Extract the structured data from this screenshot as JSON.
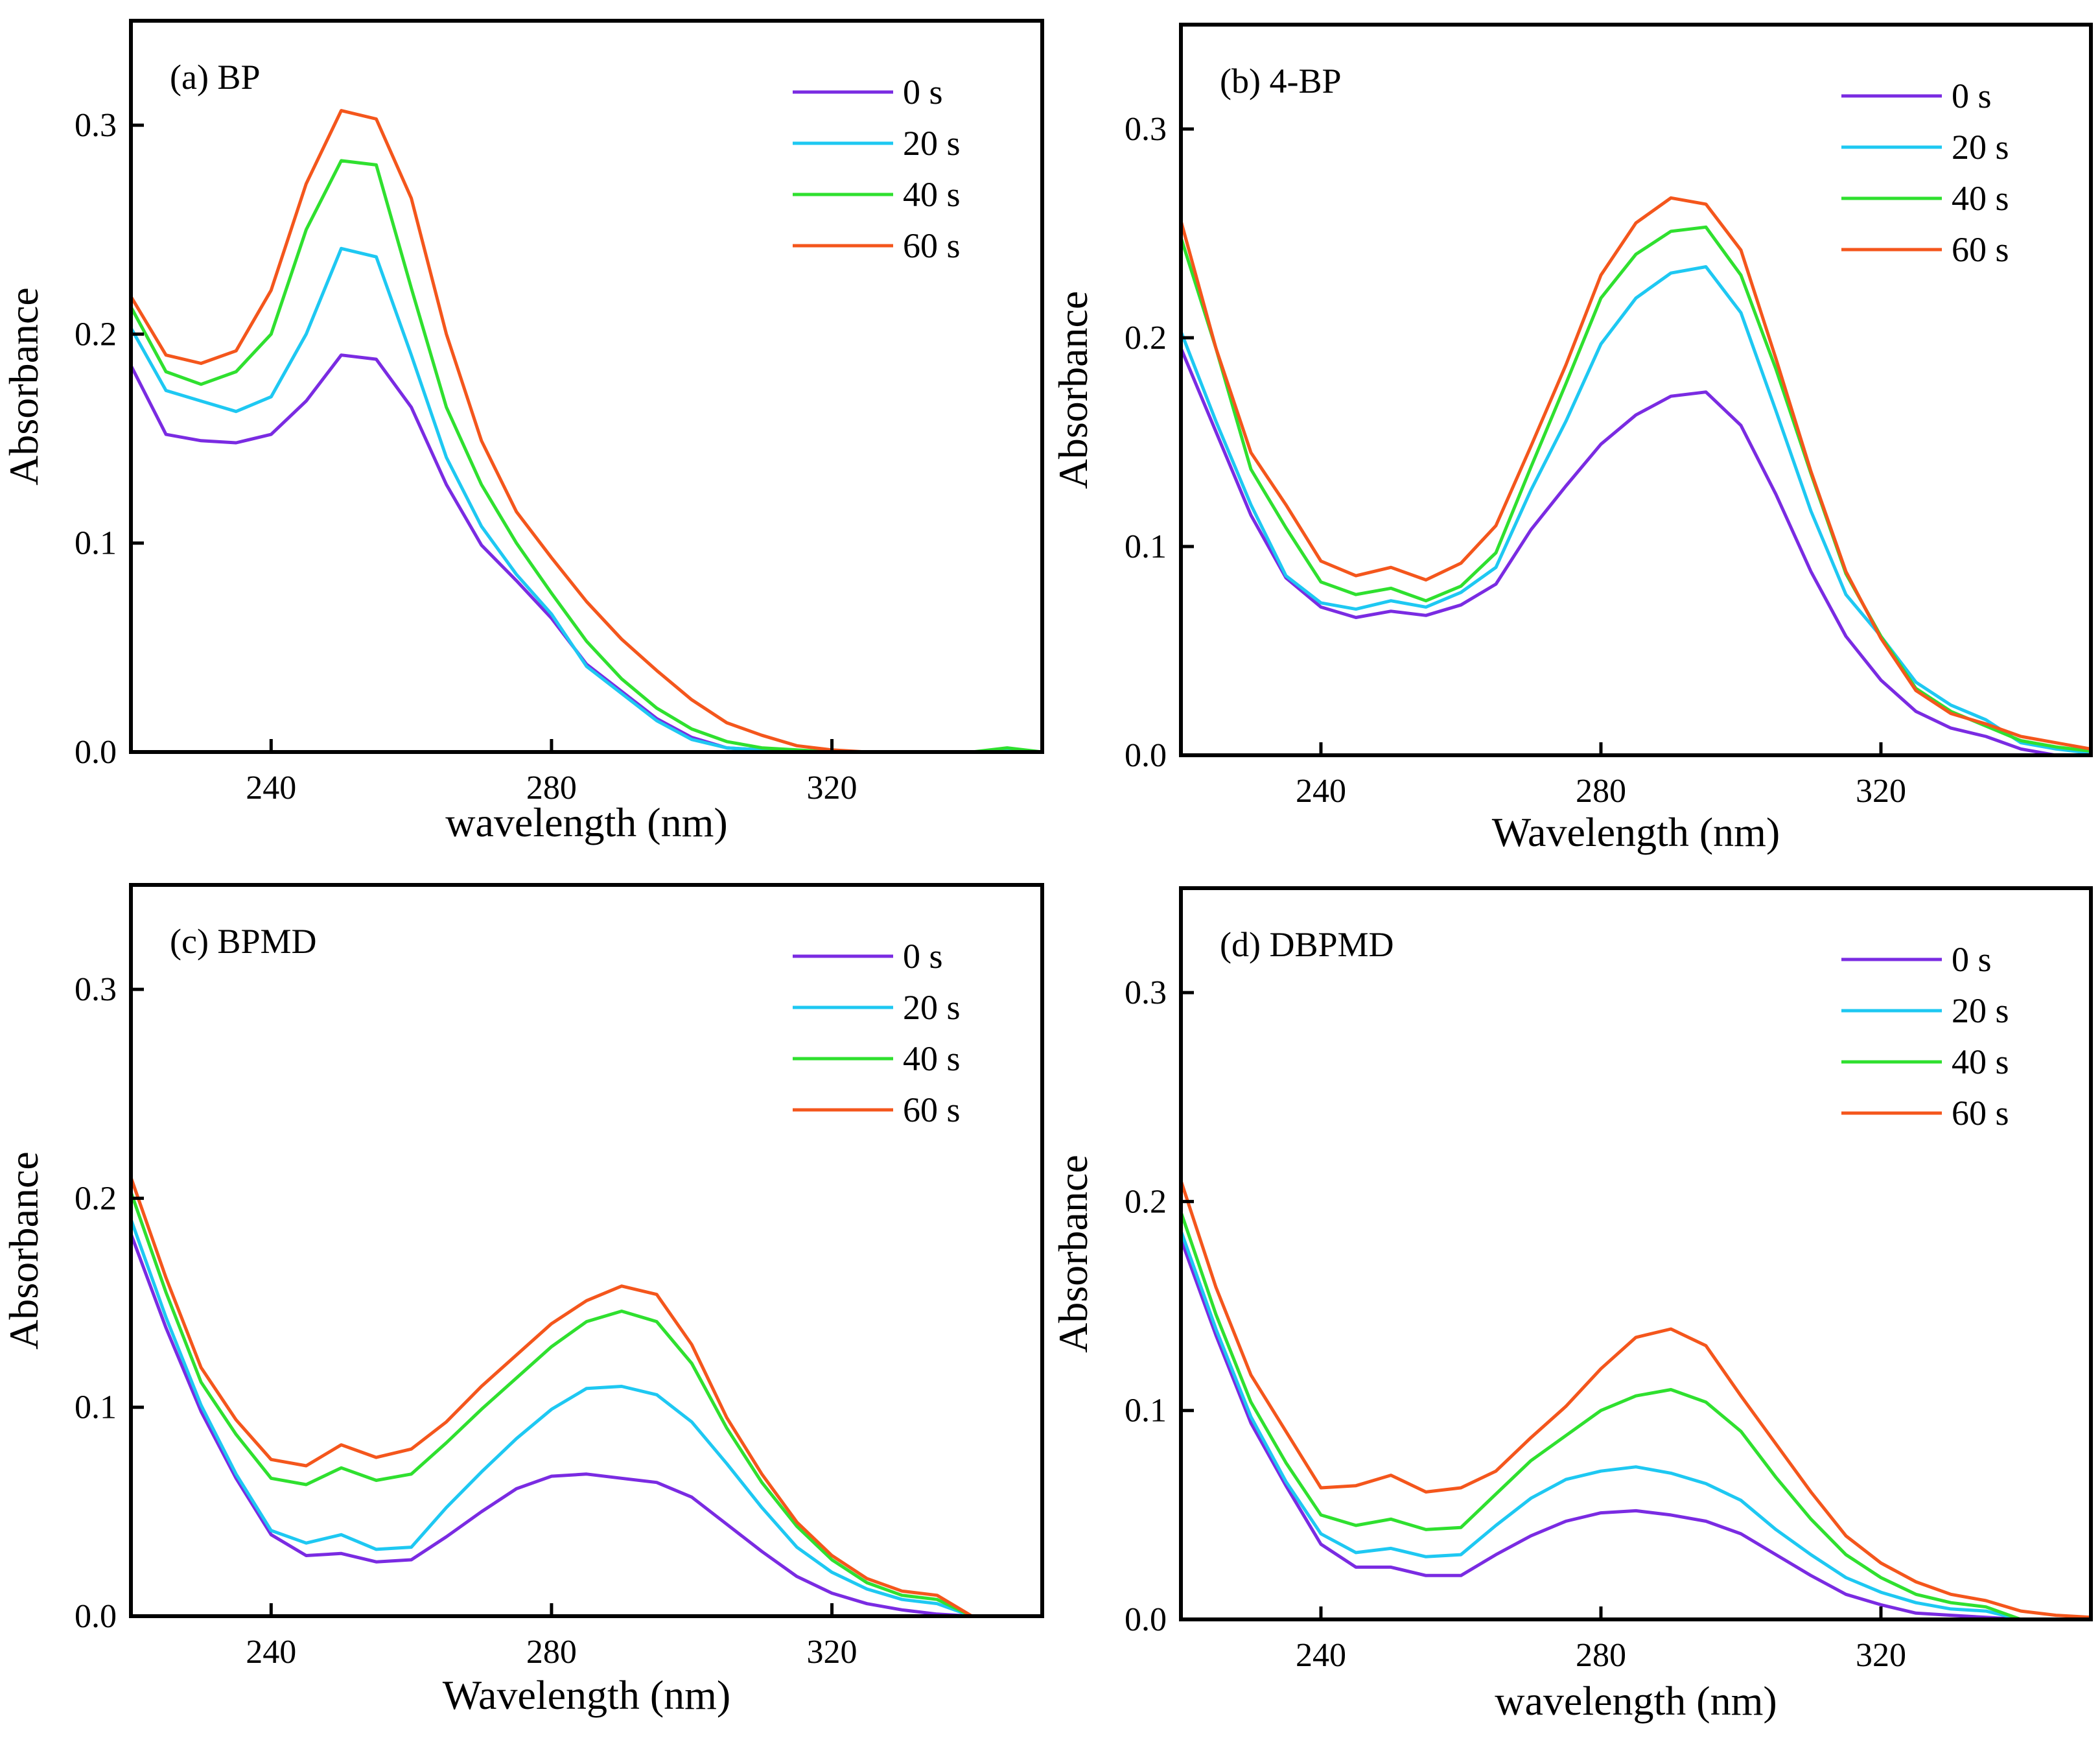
{
  "chart_data": [
    {
      "type": "line",
      "title": "(a) BP",
      "xlabel": "wavelength (nm)",
      "ylabel": "Absorbance",
      "xlim": [
        220,
        350
      ],
      "ylim": [
        0,
        0.35
      ],
      "xticks": [
        240,
        280,
        320
      ],
      "yticks": [
        0.0,
        0.1,
        0.2,
        0.3
      ],
      "xtick_labels": [
        "240",
        "280",
        "320"
      ],
      "ytick_labels": [
        "0.0",
        "0.1",
        "0.2",
        "0.3"
      ],
      "legend_position": "top-right",
      "x": [
        220,
        225,
        230,
        235,
        240,
        245,
        250,
        255,
        260,
        265,
        270,
        275,
        280,
        285,
        290,
        295,
        300,
        305,
        310,
        315,
        320,
        325,
        330,
        335,
        340,
        345,
        350
      ],
      "series": [
        {
          "name": "0 s",
          "color": "#7a2be2",
          "values": [
            0.185,
            0.152,
            0.149,
            0.148,
            0.152,
            0.168,
            0.19,
            0.188,
            0.165,
            0.128,
            0.099,
            0.082,
            0.064,
            0.042,
            0.029,
            0.016,
            0.007,
            0.002,
            0.001,
            0.0,
            0.0,
            0.0,
            0.0,
            0.0,
            0.0,
            0.001,
            0.0
          ]
        },
        {
          "name": "20 s",
          "color": "#1ec8f2",
          "values": [
            0.203,
            0.173,
            0.168,
            0.163,
            0.17,
            0.2,
            0.241,
            0.237,
            0.19,
            0.141,
            0.108,
            0.085,
            0.066,
            0.041,
            0.028,
            0.015,
            0.006,
            0.002,
            0.001,
            0.0,
            0.0,
            0.0,
            0.0,
            0.0,
            0.0,
            0.001,
            0.0
          ]
        },
        {
          "name": "40 s",
          "color": "#2fe02f",
          "values": [
            0.213,
            0.182,
            0.176,
            0.182,
            0.2,
            0.25,
            0.283,
            0.281,
            0.222,
            0.165,
            0.128,
            0.1,
            0.076,
            0.053,
            0.035,
            0.021,
            0.011,
            0.005,
            0.002,
            0.001,
            0.0,
            0.0,
            0.0,
            0.0,
            0.0,
            0.002,
            0.0
          ]
        },
        {
          "name": "60 s",
          "color": "#f4561c",
          "values": [
            0.218,
            0.19,
            0.186,
            0.192,
            0.221,
            0.272,
            0.307,
            0.303,
            0.265,
            0.2,
            0.149,
            0.115,
            0.093,
            0.072,
            0.054,
            0.039,
            0.025,
            0.014,
            0.008,
            0.003,
            0.001,
            0.0,
            0.0,
            0.0,
            0.0,
            0.0,
            0.0
          ]
        }
      ]
    },
    {
      "type": "line",
      "title": "(b) 4-BP",
      "xlabel": "Wavelength (nm)",
      "ylabel": "Absorbance",
      "xlim": [
        220,
        350
      ],
      "ylim": [
        0,
        0.35
      ],
      "xticks": [
        240,
        280,
        320
      ],
      "yticks": [
        0.0,
        0.1,
        0.2,
        0.3
      ],
      "xtick_labels": [
        "240",
        "280",
        "320"
      ],
      "ytick_labels": [
        "0.0",
        "0.1",
        "0.2",
        "0.3"
      ],
      "legend_position": "top-right",
      "x": [
        220,
        225,
        230,
        235,
        240,
        245,
        250,
        255,
        260,
        265,
        270,
        275,
        280,
        285,
        290,
        295,
        300,
        305,
        310,
        315,
        320,
        325,
        330,
        335,
        340,
        345,
        350
      ],
      "series": [
        {
          "name": "0 s",
          "color": "#7a2be2",
          "values": [
            0.195,
            0.155,
            0.115,
            0.085,
            0.071,
            0.066,
            0.069,
            0.067,
            0.072,
            0.082,
            0.108,
            0.129,
            0.149,
            0.163,
            0.172,
            0.174,
            0.158,
            0.125,
            0.088,
            0.057,
            0.036,
            0.021,
            0.013,
            0.009,
            0.003,
            0.0,
            0.0
          ]
        },
        {
          "name": "20 s",
          "color": "#1ec8f2",
          "values": [
            0.203,
            0.16,
            0.12,
            0.086,
            0.073,
            0.07,
            0.074,
            0.071,
            0.078,
            0.09,
            0.127,
            0.16,
            0.197,
            0.219,
            0.231,
            0.234,
            0.212,
            0.165,
            0.117,
            0.077,
            0.057,
            0.035,
            0.024,
            0.017,
            0.006,
            0.003,
            0.001
          ]
        },
        {
          "name": "40 s",
          "color": "#2fe02f",
          "values": [
            0.248,
            0.195,
            0.137,
            0.109,
            0.083,
            0.077,
            0.08,
            0.074,
            0.081,
            0.097,
            0.138,
            0.178,
            0.219,
            0.24,
            0.251,
            0.253,
            0.23,
            0.185,
            0.135,
            0.087,
            0.057,
            0.032,
            0.021,
            0.014,
            0.007,
            0.004,
            0.002
          ]
        },
        {
          "name": "60 s",
          "color": "#f4561c",
          "values": [
            0.256,
            0.195,
            0.145,
            0.12,
            0.093,
            0.086,
            0.09,
            0.084,
            0.092,
            0.11,
            0.148,
            0.187,
            0.23,
            0.255,
            0.267,
            0.264,
            0.242,
            0.19,
            0.136,
            0.088,
            0.056,
            0.031,
            0.02,
            0.015,
            0.009,
            0.006,
            0.003
          ]
        }
      ]
    },
    {
      "type": "line",
      "title": "(c) BPMD",
      "xlabel": "Wavelength (nm)",
      "ylabel": "Absorbance",
      "xlim": [
        220,
        350
      ],
      "ylim": [
        0,
        0.35
      ],
      "xticks": [
        240,
        280,
        320
      ],
      "yticks": [
        0.0,
        0.1,
        0.2,
        0.3
      ],
      "xtick_labels": [
        "240",
        "280",
        "320"
      ],
      "ytick_labels": [
        "0.0",
        "0.1",
        "0.2",
        "0.3"
      ],
      "legend_position": "top-right",
      "x": [
        220,
        225,
        230,
        235,
        240,
        245,
        250,
        255,
        260,
        265,
        270,
        275,
        280,
        285,
        290,
        295,
        300,
        305,
        310,
        315,
        320,
        325,
        330,
        335,
        340
      ],
      "series": [
        {
          "name": "0 s",
          "color": "#7a2be2",
          "values": [
            0.183,
            0.138,
            0.098,
            0.066,
            0.039,
            0.029,
            0.03,
            0.026,
            0.027,
            0.038,
            0.05,
            0.061,
            0.067,
            0.068,
            0.066,
            0.064,
            0.057,
            0.044,
            0.031,
            0.019,
            0.011,
            0.006,
            0.003,
            0.001,
            0.0
          ]
        },
        {
          "name": "20 s",
          "color": "#1ec8f2",
          "values": [
            0.19,
            0.143,
            0.101,
            0.068,
            0.041,
            0.035,
            0.039,
            0.032,
            0.033,
            0.052,
            0.069,
            0.085,
            0.099,
            0.109,
            0.11,
            0.106,
            0.093,
            0.073,
            0.052,
            0.033,
            0.021,
            0.013,
            0.008,
            0.006,
            0.0
          ]
        },
        {
          "name": "40 s",
          "color": "#2fe02f",
          "values": [
            0.203,
            0.155,
            0.112,
            0.087,
            0.066,
            0.063,
            0.071,
            0.065,
            0.068,
            0.083,
            0.099,
            0.114,
            0.129,
            0.141,
            0.146,
            0.141,
            0.121,
            0.09,
            0.064,
            0.043,
            0.027,
            0.016,
            0.01,
            0.008,
            0.0
          ]
        },
        {
          "name": "60 s",
          "color": "#f4561c",
          "values": [
            0.21,
            0.162,
            0.119,
            0.094,
            0.075,
            0.072,
            0.082,
            0.076,
            0.08,
            0.093,
            0.11,
            0.125,
            0.14,
            0.151,
            0.158,
            0.154,
            0.13,
            0.095,
            0.068,
            0.045,
            0.029,
            0.018,
            0.012,
            0.01,
            0.0
          ]
        }
      ]
    },
    {
      "type": "line",
      "title": "(d) DBPMD",
      "xlabel": "wavelength (nm)",
      "ylabel": "Absorbance",
      "xlim": [
        220,
        350
      ],
      "ylim": [
        0,
        0.35
      ],
      "xticks": [
        240,
        280,
        320
      ],
      "yticks": [
        0.0,
        0.1,
        0.2,
        0.3
      ],
      "xtick_labels": [
        "240",
        "280",
        "320"
      ],
      "ytick_labels": [
        "0.0",
        "0.1",
        "0.2",
        "0.3"
      ],
      "legend_position": "top-right",
      "x": [
        220,
        225,
        230,
        235,
        240,
        245,
        250,
        255,
        260,
        265,
        270,
        275,
        280,
        285,
        290,
        295,
        300,
        305,
        310,
        315,
        320,
        325,
        330,
        335,
        340,
        345,
        350
      ],
      "series": [
        {
          "name": "0 s",
          "color": "#7a2be2",
          "values": [
            0.182,
            0.136,
            0.094,
            0.064,
            0.036,
            0.025,
            0.025,
            0.021,
            0.021,
            0.031,
            0.04,
            0.047,
            0.051,
            0.052,
            0.05,
            0.047,
            0.041,
            0.031,
            0.021,
            0.012,
            0.007,
            0.003,
            0.002,
            0.001,
            0.0,
            null,
            null
          ]
        },
        {
          "name": "20 s",
          "color": "#1ec8f2",
          "values": [
            0.186,
            0.139,
            0.097,
            0.066,
            0.041,
            0.032,
            0.034,
            0.03,
            0.031,
            0.045,
            0.058,
            0.067,
            0.071,
            0.073,
            0.07,
            0.065,
            0.057,
            0.043,
            0.031,
            0.02,
            0.013,
            0.008,
            0.005,
            0.004,
            0.0,
            null,
            null
          ]
        },
        {
          "name": "40 s",
          "color": "#2fe02f",
          "values": [
            0.195,
            0.146,
            0.104,
            0.075,
            0.05,
            0.045,
            0.048,
            0.043,
            0.044,
            0.06,
            0.076,
            0.088,
            0.1,
            0.107,
            0.11,
            0.104,
            0.09,
            0.068,
            0.048,
            0.031,
            0.02,
            0.012,
            0.008,
            0.006,
            0.0,
            null,
            null
          ]
        },
        {
          "name": "60 s",
          "color": "#f4561c",
          "values": [
            0.21,
            0.159,
            0.117,
            0.09,
            0.063,
            0.064,
            0.069,
            0.061,
            0.063,
            0.071,
            0.087,
            0.102,
            0.12,
            0.135,
            0.139,
            0.131,
            0.107,
            0.084,
            0.061,
            0.04,
            0.027,
            0.018,
            0.012,
            0.009,
            0.004,
            0.002,
            0.001
          ]
        }
      ]
    }
  ]
}
